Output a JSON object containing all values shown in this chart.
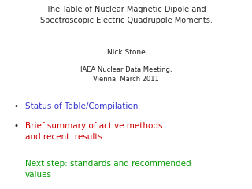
{
  "bg_color": "#ffffff",
  "title_line1": "The Table of Nuclear Magnetic Dipole and",
  "title_line2": "Spectroscopic Electric Quadrupole Moments.",
  "author": "Nick Stone",
  "conference_line1": "IAEA Nuclear Data Meeting,",
  "conference_line2": "Vienna, March 2011",
  "bullet1_text": "Status of Table/Compilation",
  "bullet1_color": "#3333cc",
  "bullet2_line1": "Brief summary of active methods",
  "bullet2_line2": "and recent  results",
  "bullet2_color": "#cc0000",
  "bullet3_line1": "Next step: standards and recommended values",
  "bullet3_line2": "values",
  "bullet3_color": "#009900",
  "title_fontsize": 7.0,
  "author_fontsize": 6.5,
  "conference_fontsize": 6.0,
  "bullet_fontsize": 7.5,
  "small_bullet_fontsize": 7.5
}
